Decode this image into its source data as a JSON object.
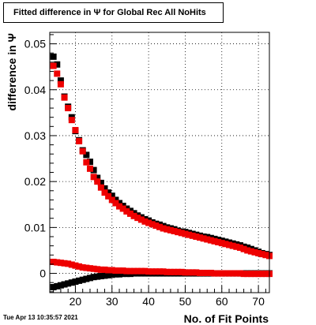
{
  "title": "Fitted difference in  Ψ  for Global Rec All NoHits",
  "timestamp": "Tue Apr 13 10:35:57 2021",
  "chart_data": {
    "type": "scatter",
    "title": "Fitted difference in  Ψ  for Global Rec All NoHits",
    "xlabel": "No. of Fit Points",
    "ylabel": "difference in Ψ",
    "xlim": [
      13,
      73
    ],
    "ylim": [
      -0.0042,
      0.0525
    ],
    "x_ticks": [
      20,
      30,
      40,
      50,
      60,
      70
    ],
    "x_tick_labels": [
      "20",
      "30",
      "40",
      "50",
      "60",
      "70"
    ],
    "y_ticks": [
      0,
      0.01,
      0.02,
      0.03,
      0.04,
      0.05
    ],
    "y_tick_labels": [
      "0",
      "0.01",
      "0.02",
      "0.03",
      "0.04",
      "0.05"
    ],
    "grid": true,
    "series": [
      {
        "color": "#000000",
        "x": [
          14,
          15,
          16,
          17,
          18,
          19,
          20,
          21,
          22,
          23,
          24,
          25,
          26,
          27,
          28,
          29,
          30,
          31,
          32,
          33,
          34,
          35,
          36,
          37,
          38,
          39,
          40,
          41,
          42,
          43,
          44,
          45,
          46,
          47,
          48,
          49,
          50,
          51,
          52,
          53,
          54,
          55,
          56,
          57,
          58,
          59,
          60,
          61,
          62,
          63,
          64,
          65,
          66,
          67,
          68,
          69,
          70,
          71,
          72,
          73
        ],
        "y": [
          0.0472,
          0.0455,
          0.042,
          0.0385,
          0.0363,
          0.034,
          0.031,
          0.029,
          0.0268,
          0.0258,
          0.0243,
          0.0225,
          0.0208,
          0.0197,
          0.0185,
          0.0176,
          0.0169,
          0.016,
          0.0153,
          0.0147,
          0.0141,
          0.0136,
          0.0131,
          0.0126,
          0.0122,
          0.0118,
          0.0115,
          0.0111,
          0.0108,
          0.0106,
          0.0103,
          0.01,
          0.0098,
          0.0096,
          0.0093,
          0.0091,
          0.009,
          0.0088,
          0.0086,
          0.0084,
          0.0082,
          0.008,
          0.0079,
          0.0077,
          0.0075,
          0.0073,
          0.0071,
          0.0069,
          0.0067,
          0.0065,
          0.0063,
          0.0061,
          0.0058,
          0.0056,
          0.0053,
          0.005,
          0.0047,
          0.0044,
          0.0042,
          0.004
        ]
      },
      {
        "color": "#ee0000",
        "x": [
          14,
          15,
          16,
          17,
          18,
          19,
          20,
          21,
          22,
          23,
          24,
          25,
          26,
          27,
          28,
          29,
          30,
          31,
          32,
          33,
          34,
          35,
          36,
          37,
          38,
          39,
          40,
          41,
          42,
          43,
          44,
          45,
          46,
          47,
          48,
          49,
          50,
          51,
          52,
          53,
          54,
          55,
          56,
          57,
          58,
          59,
          60,
          61,
          62,
          63,
          64,
          65,
          66,
          67,
          68,
          69,
          70,
          71,
          72,
          73
        ],
        "y": [
          0.0452,
          0.0435,
          0.0412,
          0.0383,
          0.036,
          0.0334,
          0.0312,
          0.0288,
          0.0266,
          0.0242,
          0.0228,
          0.021,
          0.02,
          0.0187,
          0.0176,
          0.0168,
          0.016,
          0.0153,
          0.0146,
          0.0141,
          0.0135,
          0.013,
          0.0125,
          0.0121,
          0.0117,
          0.0113,
          0.011,
          0.0107,
          0.0104,
          0.0101,
          0.0098,
          0.0096,
          0.0094,
          0.0092,
          0.009,
          0.0088,
          0.0086,
          0.0084,
          0.0082,
          0.008,
          0.0078,
          0.0076,
          0.0074,
          0.0072,
          0.007,
          0.0068,
          0.0066,
          0.0064,
          0.0062,
          0.006,
          0.0058,
          0.0056,
          0.0053,
          0.005,
          0.0048,
          0.0046,
          0.0044,
          0.0042,
          0.004,
          0.0038
        ]
      },
      {
        "color": "#000000",
        "x": [
          14,
          15,
          16,
          17,
          18,
          19,
          20,
          21,
          22,
          23,
          24,
          25,
          26,
          27,
          28,
          29,
          30,
          31,
          32,
          33,
          34,
          35,
          36,
          37,
          38,
          39,
          40,
          41,
          42,
          43,
          44,
          45,
          46,
          47,
          48,
          49,
          50,
          51,
          52,
          53,
          54,
          55,
          56,
          57,
          58,
          59,
          60,
          61,
          62,
          63,
          64,
          65,
          66,
          67,
          68,
          69,
          70,
          71,
          72,
          73
        ],
        "y": [
          -0.003,
          -0.0028,
          -0.0026,
          -0.0024,
          -0.0022,
          -0.002,
          -0.0018,
          -0.0016,
          -0.0014,
          -0.0012,
          -0.001,
          -0.0008,
          -0.0007,
          -0.0006,
          -0.0005,
          -0.0004,
          -0.0003,
          -0.0002,
          -0.0002,
          -0.0001,
          -0.0001,
          -0.0001,
          0.0,
          0.0,
          0.0,
          0.0,
          0.0,
          0.0,
          0.0,
          0.0,
          0.0,
          0.0,
          0.0,
          0.0,
          0.0,
          0.0,
          0.0,
          0.0,
          0.0,
          0.0,
          0.0,
          0.0,
          0.0,
          0.0,
          0.0,
          0.0,
          0.0,
          0.0,
          0.0,
          0.0,
          0.0,
          0.0,
          0.0,
          0.0,
          0.0,
          0.0,
          0.0,
          0.0,
          0.0,
          0.0
        ]
      },
      {
        "color": "#ee0000",
        "x": [
          14,
          15,
          16,
          17,
          18,
          19,
          20,
          21,
          22,
          23,
          24,
          25,
          26,
          27,
          28,
          29,
          30,
          31,
          32,
          33,
          34,
          35,
          36,
          37,
          38,
          39,
          40,
          41,
          42,
          43,
          44,
          45,
          46,
          47,
          48,
          49,
          50,
          51,
          52,
          53,
          54,
          55,
          56,
          57,
          58,
          59,
          60,
          61,
          62,
          63,
          64,
          65,
          66,
          67,
          68,
          69,
          70,
          71,
          72,
          73
        ],
        "y": [
          0.0025,
          0.0024,
          0.0023,
          0.0022,
          0.0021,
          0.0019,
          0.0017,
          0.0015,
          0.0013,
          0.0012,
          0.0011,
          0.001,
          0.0009,
          0.0008,
          0.0008,
          0.0007,
          0.0007,
          0.0006,
          0.0006,
          0.0006,
          0.0005,
          0.0005,
          0.0005,
          0.0005,
          0.0005,
          0.0005,
          0.0004,
          0.0004,
          0.0004,
          0.0004,
          0.0004,
          0.0003,
          0.0003,
          0.0003,
          0.0003,
          0.0003,
          0.0002,
          0.0002,
          0.0002,
          0.0002,
          0.0001,
          0.0001,
          0.0001,
          0.0001,
          0.0,
          0.0,
          0.0,
          0.0,
          0.0,
          0.0,
          0.0,
          0.0,
          -0.0001,
          -0.0001,
          -0.0001,
          -0.0001,
          -0.0001,
          -0.0001,
          -0.0001,
          -0.0001
        ]
      }
    ]
  }
}
